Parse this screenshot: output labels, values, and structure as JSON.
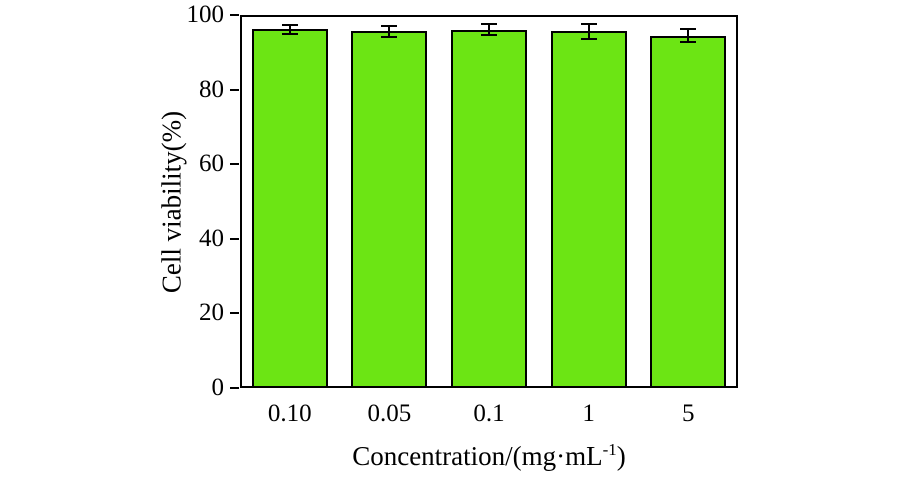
{
  "chart_data": {
    "type": "bar",
    "title": "",
    "xlabel": "Concentration/(mg·mL⁻¹)",
    "ylabel": "Cell viability(%)",
    "categories": [
      "0.10",
      "0.05",
      "0.1",
      "1",
      "5"
    ],
    "values": [
      96.2,
      95.6,
      96.1,
      95.6,
      94.5
    ],
    "errors": [
      1.2,
      1.5,
      1.5,
      2.0,
      1.8
    ],
    "ylim": [
      0,
      100
    ],
    "yticks": [
      0,
      20,
      40,
      60,
      80,
      100
    ],
    "grid": false,
    "legend": "none",
    "bar_color": "#6CE514",
    "bar_border_color": "#000000",
    "error_bar_color": "#000000"
  },
  "display": {
    "y_title": "Cell viability(%)",
    "x_title_prefix": "Concentration/(mg·mL",
    "x_title_sup": "-1",
    "x_title_suffix": ")"
  }
}
